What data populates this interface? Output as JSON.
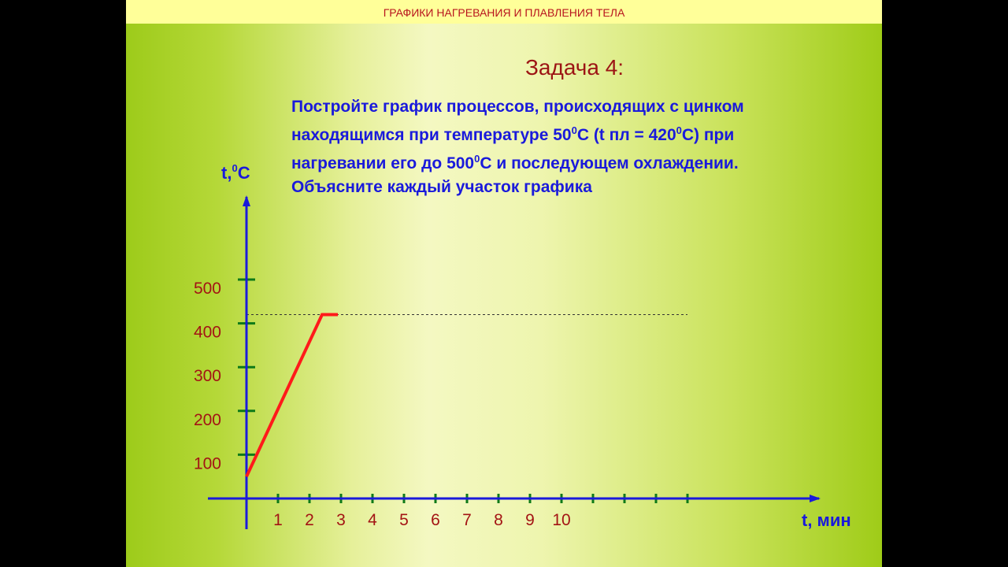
{
  "header": {
    "title": "ГРАФИКИ  НАГРЕВАНИЯ И ПЛАВЛЕНИЯ ТЕЛА"
  },
  "task": {
    "title": "Задача 4:",
    "line1": "Постройте график процессов, происходящих с цинком",
    "line2_pre": "находящимся при температуре 50",
    "line2_sup1": "0",
    "line2_mid": "С  (t пл = 420",
    "line2_sup2": "0",
    "line2_post": "С) при",
    "line3_pre": "нагревании его до 500",
    "line3_sup": "0",
    "line3_post": "С  и последующем охлаждении.",
    "line4": "Объясните каждый участок графика"
  },
  "colors": {
    "axis": "#1a1adb",
    "tick": "#0e7a18",
    "series": "#ff1a1a",
    "label": "#a31414",
    "text": "#1a1adb"
  },
  "chart_data": {
    "type": "line",
    "ylabel": "t,⁰С",
    "ylabel_base": "t,",
    "ylabel_sup": "0",
    "ylabel_unit": "С",
    "xlabel": "t, мин",
    "y_ticks": [
      100,
      200,
      300,
      400,
      500
    ],
    "y_tick_labels": [
      "100",
      "200",
      "300",
      "400",
      "500"
    ],
    "x_ticks": [
      1,
      2,
      3,
      4,
      5,
      6,
      7,
      8,
      9,
      10,
      11,
      12,
      13,
      14
    ],
    "x_tick_labels": [
      "1",
      "2",
      "3",
      "4",
      "5",
      "6",
      "7",
      "8",
      "9",
      "10"
    ],
    "xlim": [
      0,
      14
    ],
    "ylim": [
      0,
      500
    ],
    "reference_line": {
      "y": 420,
      "style": "dashed",
      "x_range": [
        0,
        14
      ]
    },
    "series": [
      {
        "x": [
          0,
          2.4,
          2.9
        ],
        "y": [
          50,
          420,
          420
        ]
      }
    ]
  }
}
